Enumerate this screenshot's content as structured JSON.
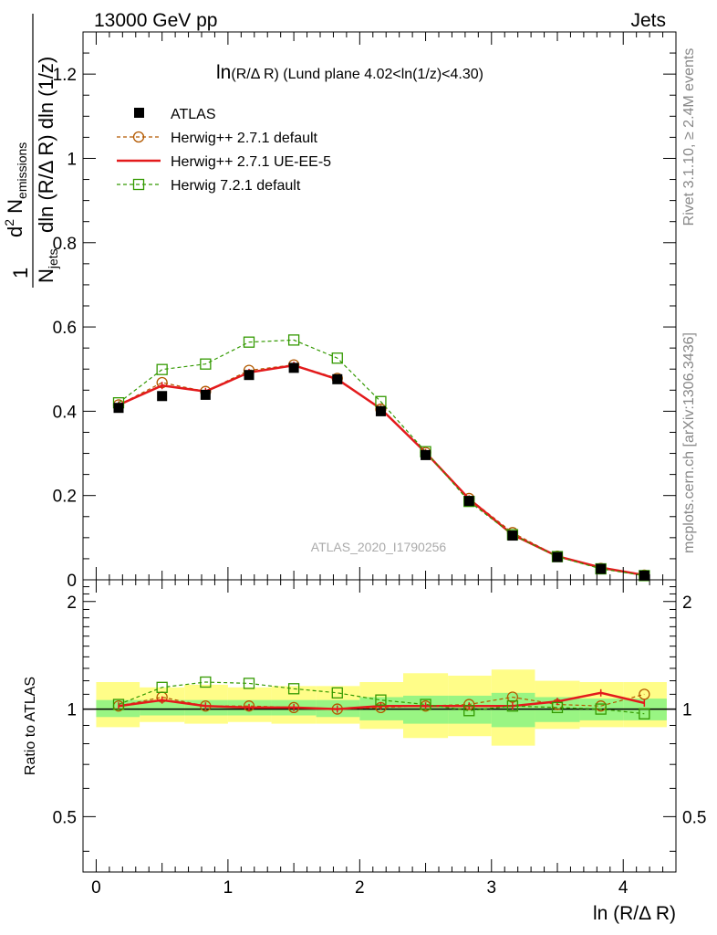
{
  "header": {
    "left": "13000 GeV pp",
    "right": "Jets"
  },
  "side_labels": {
    "rivet": "Rivet 3.1.10, ≥ 2.4M events",
    "mcplots": "mcplots.cern.ch [arXiv:1306.3436]"
  },
  "plot_title": {
    "main": "ln",
    "paren": "(R/Δ R)",
    "rest": " (Lund plane 4.02<ln(1/z)<4.30)"
  },
  "watermark": "ATLAS_2020_I1790256",
  "ylabel_top": {
    "one": "1",
    "njets": "N",
    "njets_sub": "jets",
    "d2": "d",
    "d2_sup": "2",
    "nemis": " N",
    "nemis_sub": "emissions",
    "den": "dln (R/Δ R) dln (1/z)"
  },
  "ylabel_bottom": "Ratio to ATLAS",
  "xlabel": "ln (R/Δ R)",
  "legend": [
    {
      "label": "ATLAS",
      "color": "#000000",
      "style": "marker-square-filled"
    },
    {
      "label": "Herwig++ 2.7.1 default",
      "color": "#b35900",
      "style": "dashed-circle"
    },
    {
      "label": "Herwig++ 2.7.1 UE-EE-5",
      "color": "#e31a1c",
      "style": "solid"
    },
    {
      "label": "Herwig 7.2.1 default",
      "color": "#339900",
      "style": "dashed-square"
    }
  ],
  "colors": {
    "band_outer": "#fffd88",
    "band_inner": "#99f583",
    "atlas": "#000000",
    "herwigpp_default": "#b35900",
    "herwigpp_ueee5": "#e31a1c",
    "herwig7": "#339900"
  },
  "chart_data": [
    {
      "type": "line",
      "panel": "main",
      "ylabel": "1/N_jets d^2 N_emissions / dln (R/Δ R) dln (1/z)",
      "xlabel": "ln (R/Δ R)",
      "ylim": [
        0,
        1.3
      ],
      "y_ticks": [
        "0",
        "0.2",
        "0.4",
        "0.6",
        "0.8",
        "1",
        "1.2"
      ],
      "y_tick_values": [
        0,
        0.2,
        0.4,
        0.6,
        0.8,
        1.0,
        1.2
      ],
      "x": [
        0.17,
        0.5,
        0.83,
        1.16,
        1.5,
        1.83,
        2.16,
        2.5,
        2.83,
        3.16,
        3.5,
        3.83,
        4.16
      ],
      "series": [
        {
          "name": "ATLAS",
          "values": [
            0.408,
            0.436,
            0.439,
            0.486,
            0.503,
            0.476,
            0.4,
            0.296,
            0.187,
            0.105,
            0.054,
            0.026,
            0.01
          ]
        },
        {
          "name": "Herwig++ 2.7.1 default",
          "values": [
            0.415,
            0.468,
            0.447,
            0.497,
            0.51,
            0.478,
            0.405,
            0.302,
            0.193,
            0.112,
            0.056,
            0.027,
            0.011
          ]
        },
        {
          "name": "Herwig++ 2.7.1 UE-EE-5",
          "values": [
            0.415,
            0.461,
            0.447,
            0.492,
            0.509,
            0.476,
            0.406,
            0.302,
            0.192,
            0.107,
            0.056,
            0.029,
            0.011
          ]
        },
        {
          "name": "Herwig 7.2.1 default",
          "values": [
            0.42,
            0.499,
            0.512,
            0.564,
            0.569,
            0.526,
            0.423,
            0.304,
            0.186,
            0.107,
            0.055,
            0.026,
            0.01
          ]
        }
      ]
    },
    {
      "type": "line",
      "panel": "ratio",
      "ylabel": "Ratio to ATLAS",
      "xlabel": "ln (R/Δ R)",
      "ylim": [
        0.35,
        2.3
      ],
      "xlim": [
        -0.1,
        4.4
      ],
      "y_ticks": [
        "0.5",
        "1",
        "2"
      ],
      "y_tick_values": [
        0.5,
        1.0,
        2.0
      ],
      "x_ticks": [
        "0",
        "1",
        "2",
        "3",
        "4"
      ],
      "x_tick_values": [
        0,
        1,
        2,
        3,
        4
      ],
      "bin_edges": [
        0.0,
        0.33,
        0.67,
        1.0,
        1.33,
        1.67,
        2.0,
        2.33,
        2.67,
        3.0,
        3.33,
        3.67,
        4.0,
        4.33
      ],
      "band_inner": [
        [
          0.95,
          1.06
        ],
        [
          0.96,
          1.06
        ],
        [
          0.96,
          1.06
        ],
        [
          0.96,
          1.06
        ],
        [
          0.96,
          1.06
        ],
        [
          0.95,
          1.06
        ],
        [
          0.93,
          1.08
        ],
        [
          0.91,
          1.09
        ],
        [
          0.91,
          1.09
        ],
        [
          0.89,
          1.11
        ],
        [
          0.92,
          1.08
        ],
        [
          0.93,
          1.07
        ],
        [
          0.93,
          1.07
        ]
      ],
      "band_outer": [
        [
          0.89,
          1.19
        ],
        [
          0.92,
          1.15
        ],
        [
          0.91,
          1.17
        ],
        [
          0.92,
          1.15
        ],
        [
          0.91,
          1.16
        ],
        [
          0.91,
          1.16
        ],
        [
          0.88,
          1.19
        ],
        [
          0.83,
          1.26
        ],
        [
          0.84,
          1.24
        ],
        [
          0.79,
          1.29
        ],
        [
          0.88,
          1.2
        ],
        [
          0.89,
          1.19
        ],
        [
          0.89,
          1.19
        ]
      ],
      "x": [
        0.17,
        0.5,
        0.83,
        1.16,
        1.5,
        1.83,
        2.16,
        2.5,
        2.83,
        3.16,
        3.5,
        3.83,
        4.16
      ],
      "series": [
        {
          "name": "Herwig++ 2.7.1 default",
          "values": [
            1.02,
            1.08,
            1.02,
            1.02,
            1.01,
            1.0,
            1.01,
            1.02,
            1.03,
            1.08,
            1.03,
            1.02,
            1.1
          ]
        },
        {
          "name": "Herwig++ 2.7.1 UE-EE-5",
          "values": [
            1.02,
            1.06,
            1.02,
            1.01,
            1.01,
            1.0,
            1.02,
            1.02,
            1.02,
            1.02,
            1.05,
            1.11,
            1.04
          ]
        },
        {
          "name": "Herwig 7.2.1 default",
          "values": [
            1.03,
            1.15,
            1.19,
            1.18,
            1.14,
            1.11,
            1.06,
            1.03,
            0.99,
            1.02,
            1.01,
            1.0,
            0.97
          ]
        }
      ]
    }
  ]
}
